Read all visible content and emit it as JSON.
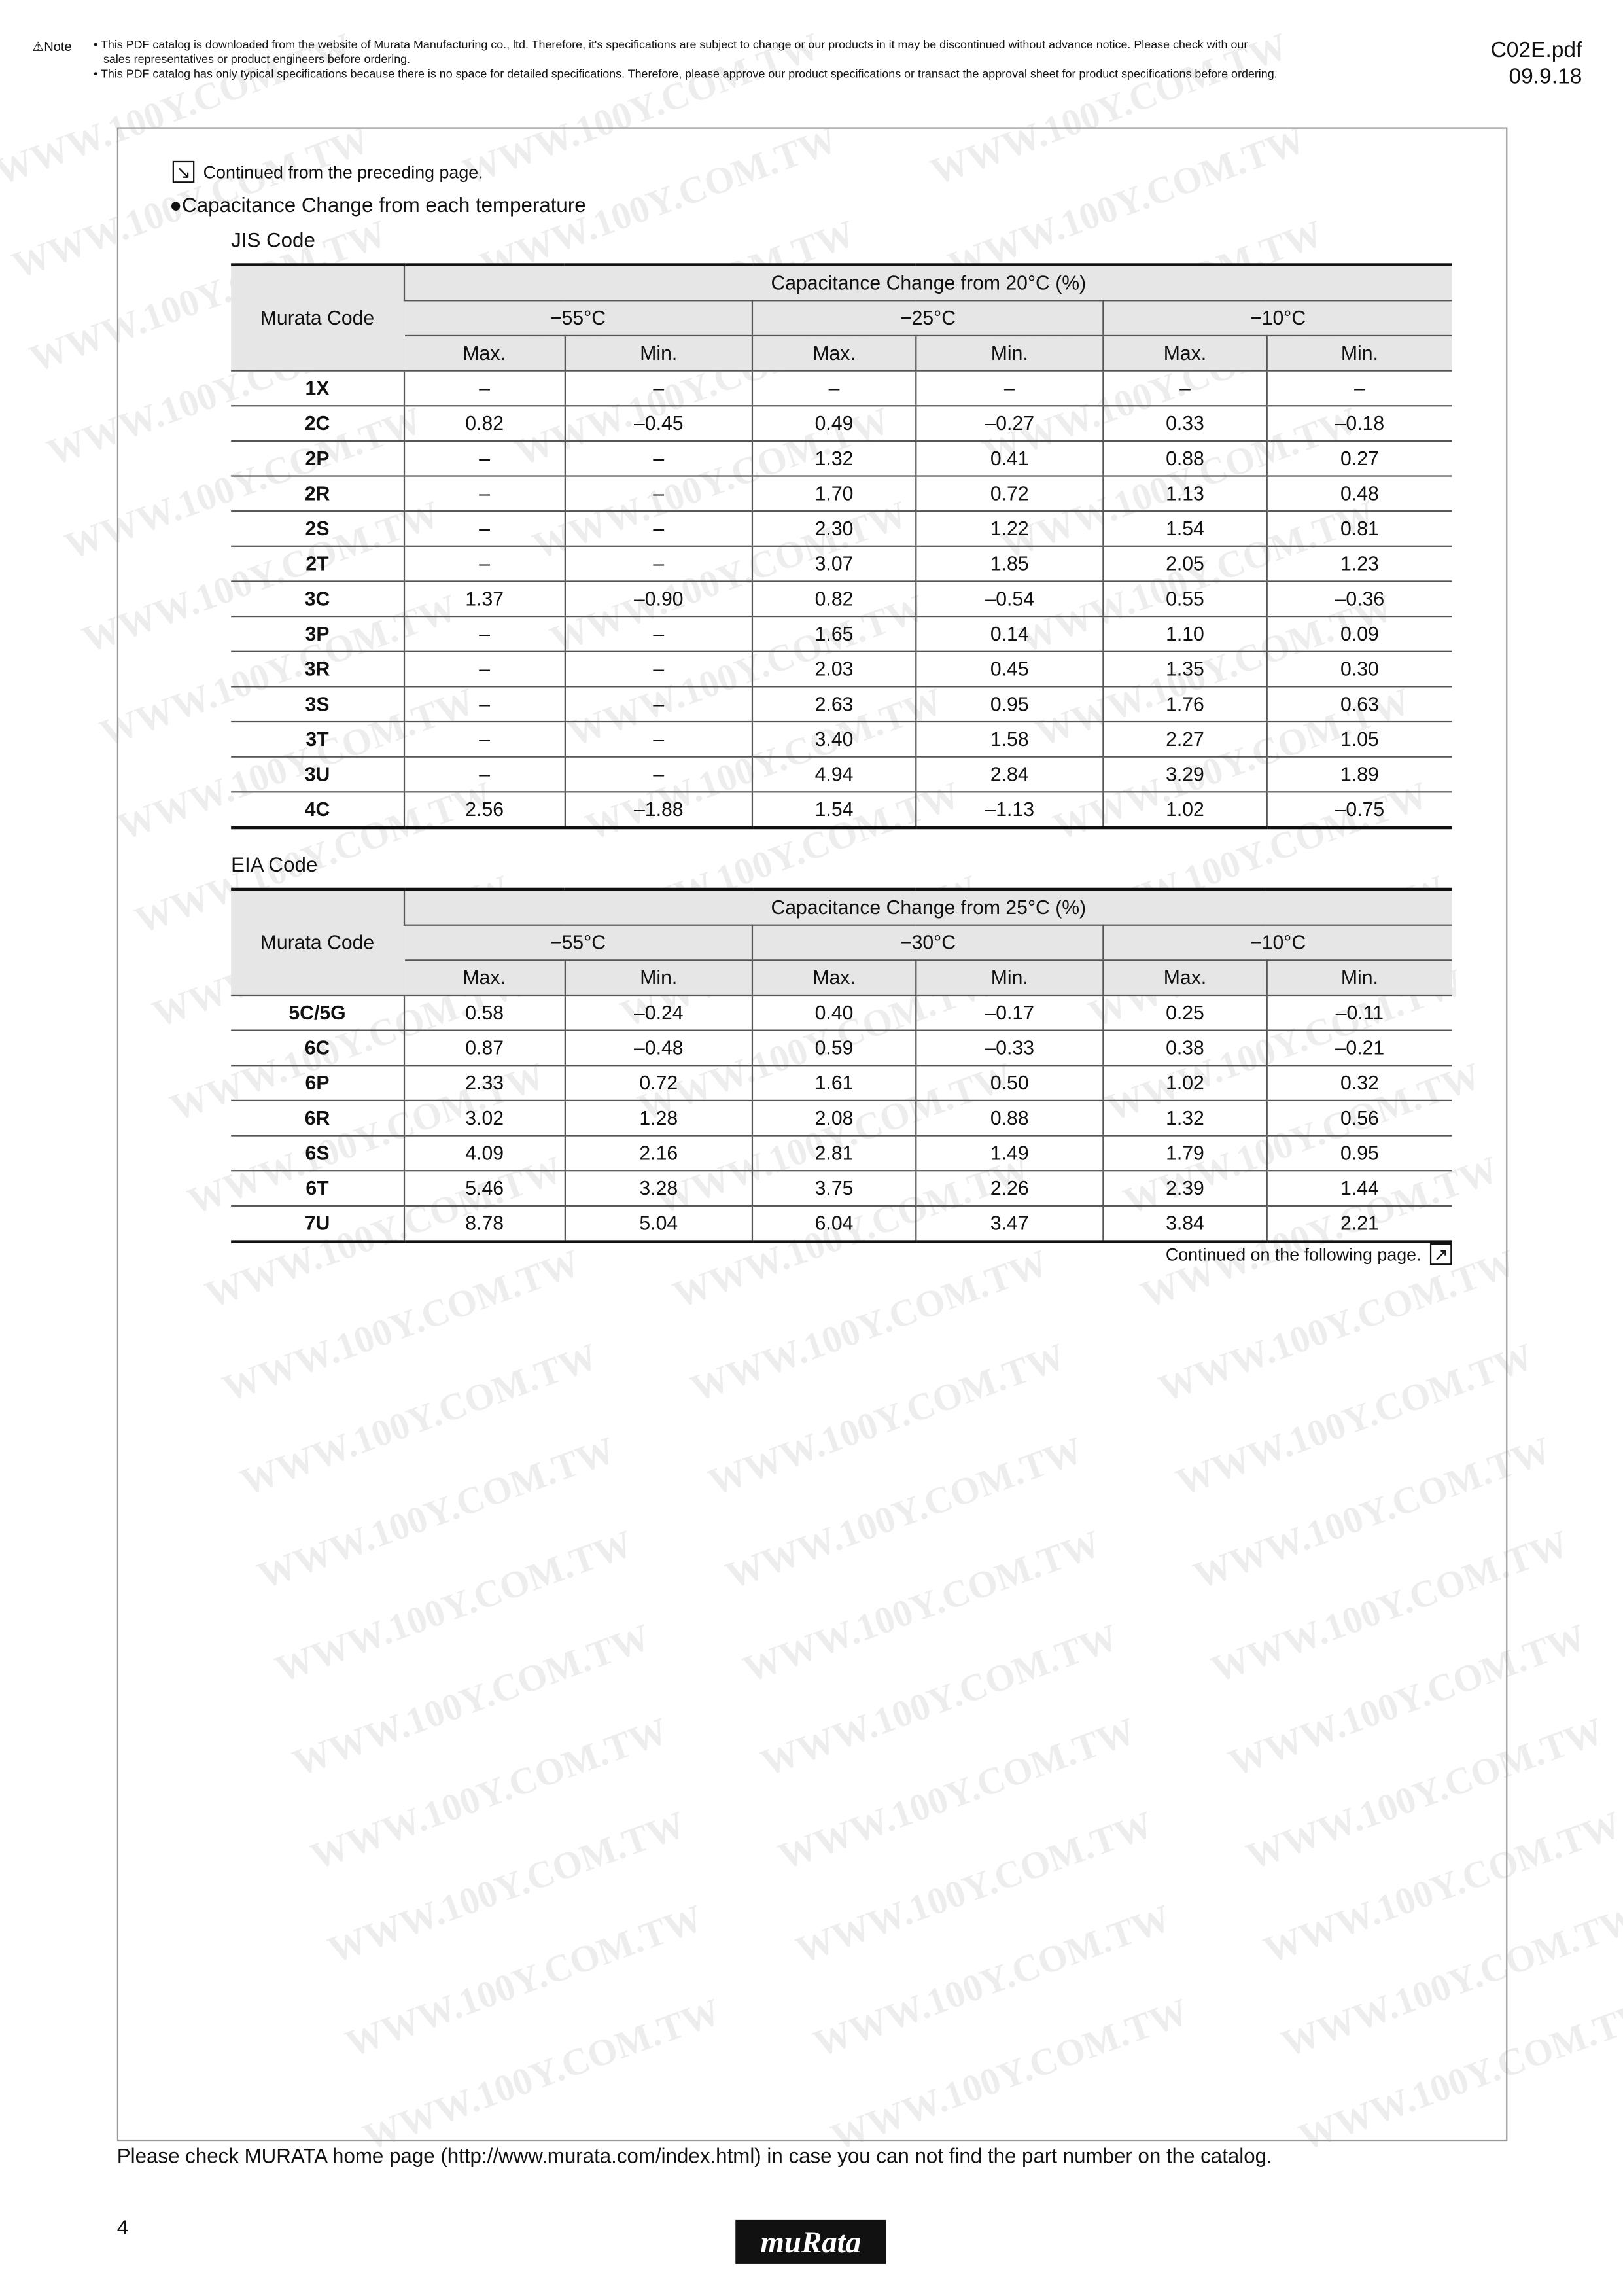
{
  "header": {
    "note_label": "⚠Note",
    "note_lines": [
      "• This PDF catalog is downloaded from the website of Murata Manufacturing co., ltd. Therefore,  it's specifications are subject to change or our products in it may be discontinued without advance notice. Please check with our",
      "   sales representatives or product engineers before ordering.",
      "• This PDF catalog has only typical specifications because there is no space for detailed specifications. Therefore, please approve our product specifications or transact the approval sheet for product specifications before ordering."
    ],
    "file": "C02E.pdf",
    "date": "09.9.18"
  },
  "continued_from": "Continued from the preceding page.",
  "section_title": "●Capacitance Change from each temperature",
  "jis": {
    "label": "JIS Code",
    "col_code": "Murata Code",
    "title": "Capacitance Change from 20°C (%)",
    "temps": [
      "−55°C",
      "−25°C",
      "−10°C"
    ],
    "sub": [
      "Max.",
      "Min.",
      "Max.",
      "Min.",
      "Max.",
      "Min."
    ],
    "rows": [
      [
        "1X",
        "–",
        "–",
        "–",
        "–",
        "–",
        "–"
      ],
      [
        "2C",
        "0.82",
        "–0.45",
        "0.49",
        "–0.27",
        "0.33",
        "–0.18"
      ],
      [
        "2P",
        "–",
        "–",
        "1.32",
        "0.41",
        "0.88",
        "0.27"
      ],
      [
        "2R",
        "–",
        "–",
        "1.70",
        "0.72",
        "1.13",
        "0.48"
      ],
      [
        "2S",
        "–",
        "–",
        "2.30",
        "1.22",
        "1.54",
        "0.81"
      ],
      [
        "2T",
        "–",
        "–",
        "3.07",
        "1.85",
        "2.05",
        "1.23"
      ],
      [
        "3C",
        "1.37",
        "–0.90",
        "0.82",
        "–0.54",
        "0.55",
        "–0.36"
      ],
      [
        "3P",
        "–",
        "–",
        "1.65",
        "0.14",
        "1.10",
        "0.09"
      ],
      [
        "3R",
        "–",
        "–",
        "2.03",
        "0.45",
        "1.35",
        "0.30"
      ],
      [
        "3S",
        "–",
        "–",
        "2.63",
        "0.95",
        "1.76",
        "0.63"
      ],
      [
        "3T",
        "–",
        "–",
        "3.40",
        "1.58",
        "2.27",
        "1.05"
      ],
      [
        "3U",
        "–",
        "–",
        "4.94",
        "2.84",
        "3.29",
        "1.89"
      ],
      [
        "4C",
        "2.56",
        "–1.88",
        "1.54",
        "–1.13",
        "1.02",
        "–0.75"
      ]
    ]
  },
  "eia": {
    "label": "EIA Code",
    "col_code": "Murata Code",
    "title": "Capacitance Change from 25°C (%)",
    "temps": [
      "−55°C",
      "−30°C",
      "−10°C"
    ],
    "sub": [
      "Max.",
      "Min.",
      "Max.",
      "Min.",
      "Max.",
      "Min."
    ],
    "rows": [
      [
        "5C/5G",
        "0.58",
        "–0.24",
        "0.40",
        "–0.17",
        "0.25",
        "–0.11"
      ],
      [
        "6C",
        "0.87",
        "–0.48",
        "0.59",
        "–0.33",
        "0.38",
        "–0.21"
      ],
      [
        "6P",
        "2.33",
        "0.72",
        "1.61",
        "0.50",
        "1.02",
        "0.32"
      ],
      [
        "6R",
        "3.02",
        "1.28",
        "2.08",
        "0.88",
        "1.32",
        "0.56"
      ],
      [
        "6S",
        "4.09",
        "2.16",
        "2.81",
        "1.49",
        "1.79",
        "0.95"
      ],
      [
        "6T",
        "5.46",
        "3.28",
        "3.75",
        "2.26",
        "2.39",
        "1.44"
      ],
      [
        "7U",
        "8.78",
        "5.04",
        "6.04",
        "3.47",
        "3.84",
        "2.21"
      ]
    ]
  },
  "continued_next": "Continued on the following page.",
  "footer": {
    "text": "Please check MURATA home page (http://www.murata.com/index.html) in case you can not find the part number on the catalog.",
    "page": "4",
    "logo": "muRata"
  },
  "watermark": "WWW.100Y.COM.TW"
}
